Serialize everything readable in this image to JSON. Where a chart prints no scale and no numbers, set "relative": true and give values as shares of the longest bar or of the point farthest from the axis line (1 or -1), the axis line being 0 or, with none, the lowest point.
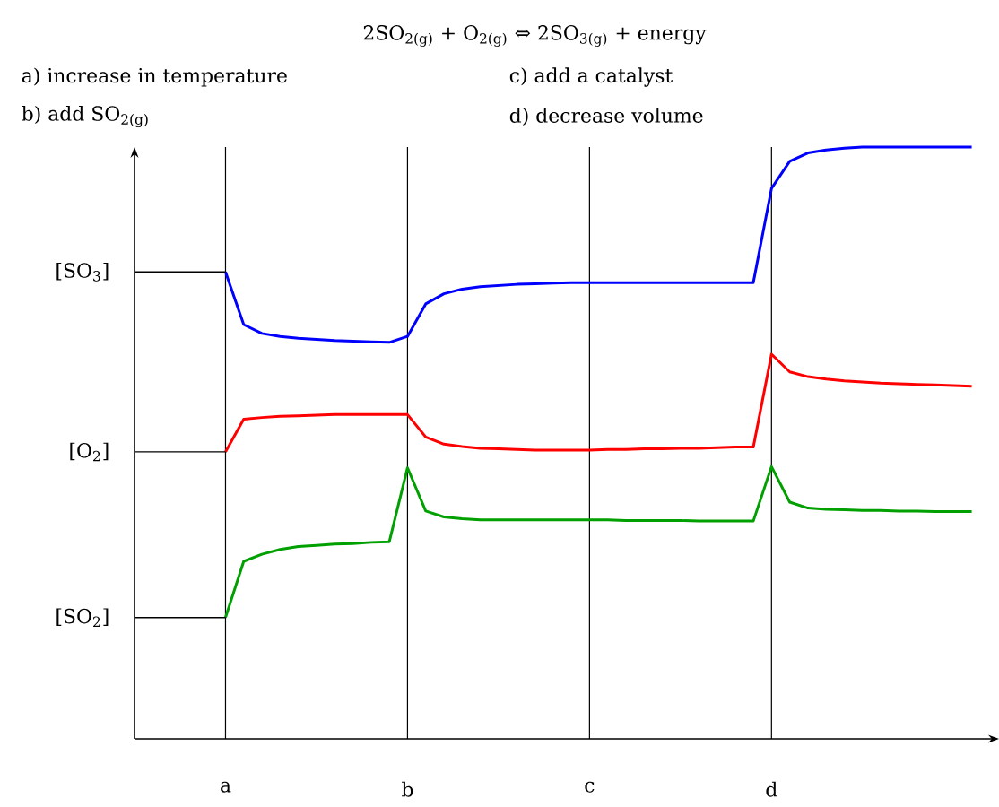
{
  "chart_data": {
    "type": "line",
    "relative": true,
    "grid": "x",
    "title": "2SO$_{2(g)}$ + O$_{2(g)}$ ⇔ 2SO$_{3(g)}$ + energy",
    "categories": [
      null,
      null,
      null,
      null,
      null,
      "a",
      null,
      null,
      null,
      null,
      null,
      null,
      null,
      null,
      null,
      "b",
      null,
      null,
      null,
      null,
      null,
      null,
      null,
      null,
      null,
      "c",
      null,
      null,
      null,
      null,
      null,
      null,
      null,
      null,
      null,
      "d",
      null,
      null,
      null,
      null,
      null,
      null,
      null,
      null,
      null,
      null,
      null
    ],
    "series": [
      {
        "color": "#0000ff",
        "values": [
          null,
          null,
          null,
          null,
          null,
          0.789,
          0.7,
          0.685,
          0.68,
          0.677,
          0.675,
          0.673,
          0.672,
          0.671,
          0.67,
          0.68,
          0.735,
          0.752,
          0.76,
          0.764,
          0.766,
          0.768,
          0.769,
          0.77,
          0.771,
          0.771,
          0.771,
          0.771,
          0.771,
          0.771,
          0.771,
          0.771,
          0.771,
          0.771,
          0.771,
          0.93,
          0.976,
          0.99,
          0.995,
          0.998,
          1.0,
          1.0,
          1.0,
          1.0,
          1.0,
          1.0,
          1.0
        ]
      },
      {
        "color": "#ff0000",
        "values": [
          null,
          null,
          null,
          null,
          null,
          0.485,
          0.54,
          0.543,
          0.545,
          0.546,
          0.547,
          0.548,
          0.548,
          0.548,
          0.548,
          0.548,
          0.51,
          0.498,
          0.494,
          0.491,
          0.49,
          0.489,
          0.488,
          0.488,
          0.488,
          0.488,
          0.489,
          0.489,
          0.49,
          0.49,
          0.491,
          0.491,
          0.492,
          0.493,
          0.493,
          0.65,
          0.62,
          0.612,
          0.608,
          0.605,
          0.603,
          0.601,
          0.6,
          0.599,
          0.598,
          0.597,
          0.596
        ]
      },
      {
        "color": "#00a000",
        "values": [
          null,
          null,
          null,
          null,
          null,
          0.205,
          0.3,
          0.312,
          0.32,
          0.325,
          0.327,
          0.329,
          0.33,
          0.332,
          0.333,
          0.458,
          0.385,
          0.375,
          0.372,
          0.37,
          0.37,
          0.37,
          0.37,
          0.37,
          0.37,
          0.37,
          0.37,
          0.369,
          0.369,
          0.369,
          0.369,
          0.368,
          0.368,
          0.368,
          0.368,
          0.46,
          0.4,
          0.39,
          0.388,
          0.387,
          0.386,
          0.386,
          0.385,
          0.385,
          0.384,
          0.384,
          0.384
        ]
      },
      {
        "name": "[SO$_{3}$]",
        "color": "#000000",
        "values": [
          0.789,
          0.789,
          0.789,
          0.789,
          0.789,
          0.789,
          null,
          null,
          null,
          null,
          null,
          null,
          null,
          null,
          null,
          null,
          null,
          null,
          null,
          null,
          null,
          null,
          null,
          null,
          null,
          null,
          null,
          null,
          null,
          null,
          null,
          null,
          null,
          null,
          null,
          null,
          null,
          null,
          null,
          null,
          null,
          null,
          null,
          null,
          null,
          null,
          null
        ]
      },
      {
        "name": "[O$_{2}$]",
        "color": "#000000",
        "values": [
          0.485,
          0.485,
          0.485,
          0.485,
          0.485,
          0.485,
          null,
          null,
          null,
          null,
          null,
          null,
          null,
          null,
          null,
          null,
          null,
          null,
          null,
          null,
          null,
          null,
          null,
          null,
          null,
          null,
          null,
          null,
          null,
          null,
          null,
          null,
          null,
          null,
          null,
          null,
          null,
          null,
          null,
          null,
          null,
          null,
          null,
          null,
          null,
          null,
          null
        ]
      },
      {
        "name": "[SO$_{2}$]",
        "color": "#000000",
        "values": [
          0.205,
          0.205,
          0.205,
          0.205,
          0.205,
          0.205,
          null,
          null,
          null,
          null,
          null,
          null,
          null,
          null,
          null,
          null,
          null,
          null,
          null,
          null,
          null,
          null,
          null,
          null,
          null,
          null,
          null,
          null,
          null,
          null,
          null,
          null,
          null,
          null,
          null,
          null,
          null,
          null,
          null,
          null,
          null,
          null,
          null,
          null,
          null,
          null,
          null
        ]
      }
    ],
    "annotations": [
      "a) increase in temperature",
      "b) add SO$_{2(g)}$",
      "c) add a catalyst",
      "d) decrease volume"
    ]
  }
}
